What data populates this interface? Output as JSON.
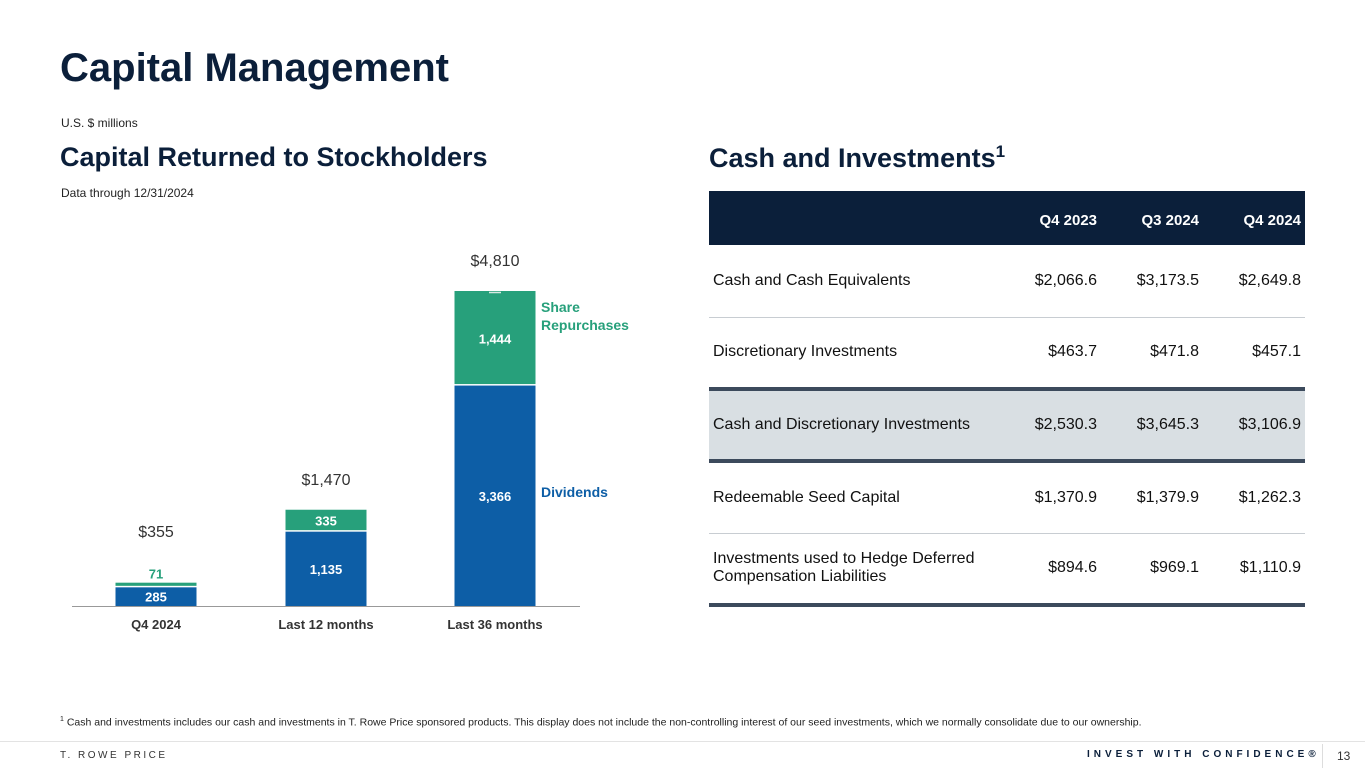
{
  "title": "Capital Management",
  "units": "U.S. $ millions",
  "left_heading": "Capital Returned to Stockholders",
  "data_through": "Data through 12/31/2024",
  "right_heading": "Cash and Investments",
  "right_heading_sup": "1",
  "chart_data": {
    "type": "bar",
    "stacked": true,
    "categories": [
      "Q4 2024",
      "Last 12 months",
      "Last 36 months"
    ],
    "series": [
      {
        "name": "Dividends",
        "values": [
          285,
          1135,
          3366
        ],
        "color": "#0d5ea6"
      },
      {
        "name": "Share Repurchases",
        "values": [
          71,
          335,
          1444
        ],
        "color": "#27a07b"
      }
    ],
    "totals": [
      "$355",
      "$1,470",
      "$4,810"
    ],
    "value_labels": [
      [
        "285",
        "1,135",
        "3,366"
      ],
      [
        "71",
        "335",
        "1,444"
      ]
    ]
  },
  "table": {
    "headers": [
      "",
      "Q4 2023",
      "Q3 2024",
      "Q4 2024"
    ],
    "rows": [
      [
        "Cash and Cash Equivalents",
        "$2,066.6",
        "$3,173.5",
        "$2,649.8"
      ],
      [
        "Discretionary Investments",
        "$463.7",
        "$471.8",
        "$457.1"
      ],
      [
        "Cash and Discretionary Investments",
        "$2,530.3",
        "$3,645.3",
        "$3,106.9"
      ],
      [
        "Redeemable Seed Capital",
        "$1,370.9",
        "$1,379.9",
        "$1,262.3"
      ],
      [
        "Investments used to Hedge Deferred Compensation Liabilities",
        "$894.6",
        "$969.1",
        "$1,110.9"
      ]
    ]
  },
  "footnote_sup": "1",
  "footnote": "Cash and investments includes our cash and investments in T. Rowe Price sponsored products. This display does not include the non-controlling interest of our seed investments, which we normally consolidate due to our ownership.",
  "footer": {
    "brand": "T. ROWE PRICE",
    "tagline": "INVEST WITH CONFIDENCE®",
    "page": "13"
  }
}
